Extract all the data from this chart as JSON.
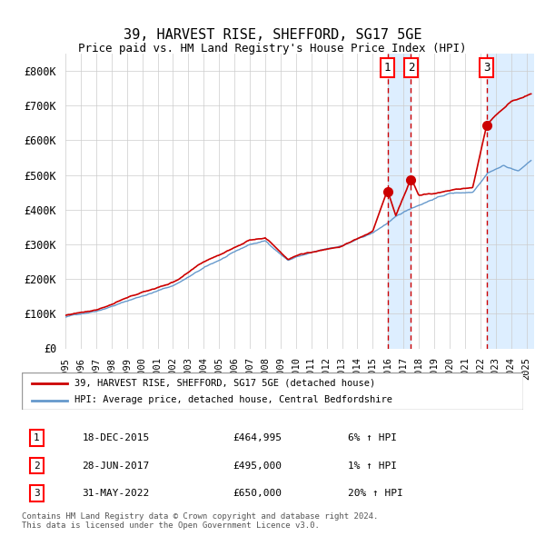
{
  "title": "39, HARVEST RISE, SHEFFORD, SG17 5GE",
  "subtitle": "Price paid vs. HM Land Registry's House Price Index (HPI)",
  "ylabel": "",
  "xlim_start": 1995.0,
  "xlim_end": 2025.5,
  "ylim": [
    0,
    850000
  ],
  "yticks": [
    0,
    100000,
    200000,
    300000,
    400000,
    500000,
    600000,
    700000,
    800000
  ],
  "ytick_labels": [
    "£0",
    "£100K",
    "£200K",
    "£300K",
    "£400K",
    "£500K",
    "£600K",
    "£700K",
    "£800K"
  ],
  "transactions": [
    {
      "date": 2015.96,
      "price": 464995,
      "label": "1"
    },
    {
      "date": 2017.49,
      "price": 495000,
      "label": "2"
    },
    {
      "date": 2022.41,
      "price": 650000,
      "label": "3"
    }
  ],
  "transaction_details": [
    {
      "num": "1",
      "date": "18-DEC-2015",
      "price": "£464,995",
      "hpi": "6% ↑ HPI"
    },
    {
      "num": "2",
      "date": "28-JUN-2017",
      "price": "£495,000",
      "hpi": "1% ↑ HPI"
    },
    {
      "num": "3",
      "date": "31-MAY-2022",
      "price": "£650,000",
      "hpi": "20% ↑ HPI"
    }
  ],
  "hpi_color": "#6699cc",
  "price_color": "#cc0000",
  "shade_color": "#ddeeff",
  "legend_property_label": "39, HARVEST RISE, SHEFFORD, SG17 5GE (detached house)",
  "legend_hpi_label": "HPI: Average price, detached house, Central Bedfordshire",
  "footer": "Contains HM Land Registry data © Crown copyright and database right 2024.\nThis data is licensed under the Open Government Licence v3.0.",
  "xticks": [
    1995,
    1996,
    1997,
    1998,
    1999,
    2000,
    2001,
    2002,
    2003,
    2004,
    2005,
    2006,
    2007,
    2008,
    2009,
    2010,
    2011,
    2012,
    2013,
    2014,
    2015,
    2016,
    2017,
    2018,
    2019,
    2020,
    2021,
    2022,
    2023,
    2024,
    2025
  ]
}
